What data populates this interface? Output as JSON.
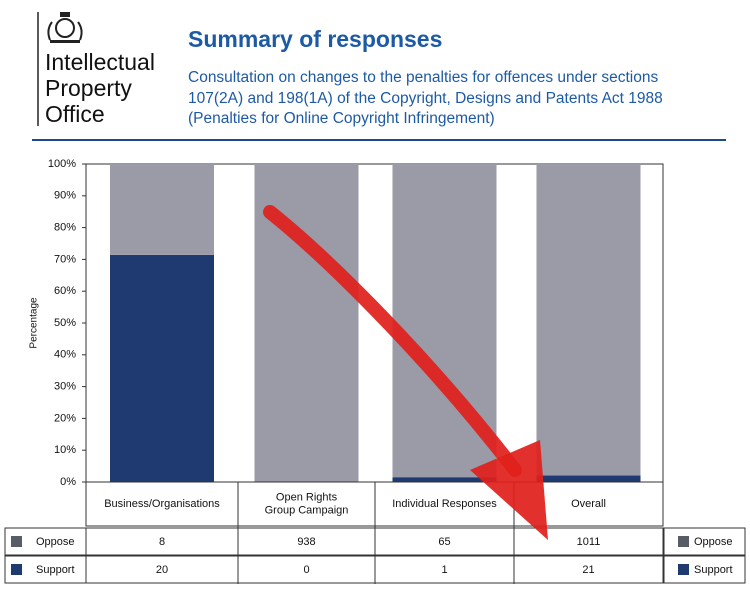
{
  "logo": [
    "Intellectual",
    "Property",
    "Office"
  ],
  "chart_data": {
    "type": "stacked100",
    "title": "Summary of responses",
    "subtitle": [
      "Consultation on changes to the penalties for offences under sections",
      "107(2A) and 198(1A) of the Copyright, Designs and Patents Act 1988",
      "(Penalties for Online Copyright Infringement)"
    ],
    "ylabel": "Percentage",
    "categories": [
      "Business/Organisations",
      "Open Rights\nGroup Campaign",
      "Individual Responses",
      "Overall"
    ],
    "series": [
      {
        "name": "Oppose",
        "color": "#9b9aa7",
        "swatch": "#585c66",
        "values": [
          8,
          938,
          65,
          1011
        ]
      },
      {
        "name": "Support",
        "color": "#1f3a70",
        "swatch": "#1f3a70",
        "values": [
          20,
          0,
          1,
          21
        ]
      }
    ],
    "ylim": [
      0,
      100
    ],
    "yticks": [
      {
        "value": 0,
        "label": "0%"
      },
      {
        "value": 10,
        "label": "10%"
      },
      {
        "value": 20,
        "label": "20%"
      },
      {
        "value": 30,
        "label": "30%"
      },
      {
        "value": 40,
        "label": "40%"
      },
      {
        "value": 50,
        "label": "50%"
      },
      {
        "value": 60,
        "label": "60%"
      },
      {
        "value": 70,
        "label": "70%"
      },
      {
        "value": 80,
        "label": "80%"
      },
      {
        "value": 90,
        "label": "90%"
      },
      {
        "value": 100,
        "label": "100%"
      }
    ]
  }
}
